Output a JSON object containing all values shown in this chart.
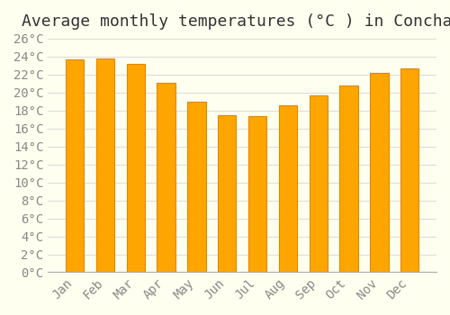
{
  "title": "Average monthly temperatures (°C ) in Conchas",
  "months": [
    "Jan",
    "Feb",
    "Mar",
    "Apr",
    "May",
    "Jun",
    "Jul",
    "Aug",
    "Sep",
    "Oct",
    "Nov",
    "Dec"
  ],
  "values": [
    23.7,
    23.8,
    23.2,
    21.1,
    19.0,
    17.5,
    17.4,
    18.6,
    19.7,
    20.8,
    22.2,
    22.7
  ],
  "bar_color": "#FFA500",
  "bar_edge_color": "#E08800",
  "background_color": "#FFFFF0",
  "grid_color": "#DDDDDD",
  "ylim": [
    0,
    26
  ],
  "ytick_step": 2,
  "title_fontsize": 13,
  "tick_fontsize": 10,
  "tick_color": "#888888",
  "font_family": "monospace"
}
